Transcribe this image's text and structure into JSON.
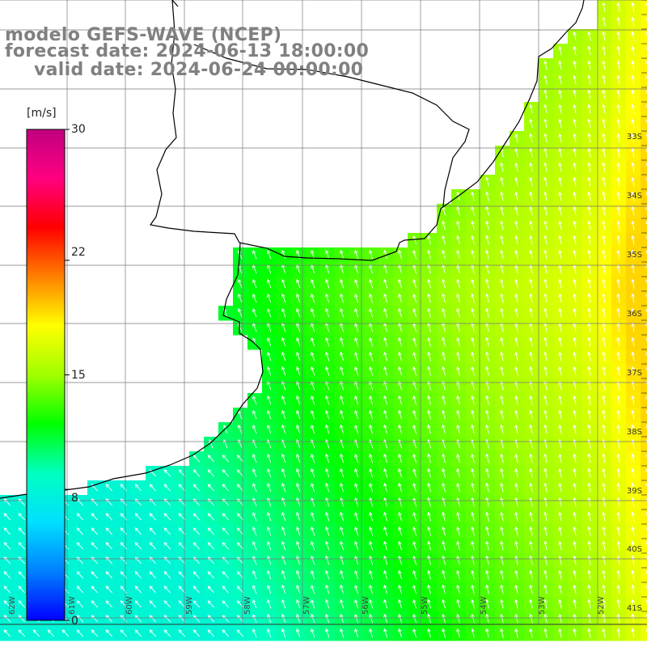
{
  "title": {
    "line1": "modelo GEFS-WAVE (NCEP)",
    "line2": "forecast date: 2024-06-13 18:00:00",
    "line3": "valid date: 2024-06-24 00:00:00"
  },
  "colorbar": {
    "unit": "[m/s]",
    "min": 0,
    "max": 30,
    "ticks": [
      {
        "value": 30,
        "label": "30"
      },
      {
        "value": 22,
        "label": "22"
      },
      {
        "value": 15,
        "label": "15"
      },
      {
        "value": 8,
        "label": "8"
      },
      {
        "value": 0,
        "label": "0"
      }
    ],
    "stops": [
      "#0000ff",
      "#0080ff",
      "#00e0ff",
      "#00ffc0",
      "#00ff00",
      "#a0ff00",
      "#ffff00",
      "#ff8000",
      "#ff0000",
      "#ff0080",
      "#c0007f"
    ]
  },
  "map": {
    "latitude_labels": [
      "33S",
      "34S",
      "35S",
      "36S",
      "37S",
      "38S",
      "39S",
      "40S",
      "41S"
    ],
    "longitude_labels": [
      "62W",
      "61W",
      "60W",
      "59W",
      "58W",
      "57W",
      "56W",
      "55W",
      "54W",
      "53W",
      "52W",
      "51W"
    ],
    "wind_direction": "from-southwest",
    "ocean_speed_field": "low (≈8–10 m/s, blue) in the southwest near the coast, rising to ≈15–18 m/s (green to yellow) toward the east",
    "colors": {
      "land": "#ffffff",
      "coast": "#000000",
      "grid": "#777777",
      "arrow": "#ffffff",
      "title": "#808080"
    }
  }
}
